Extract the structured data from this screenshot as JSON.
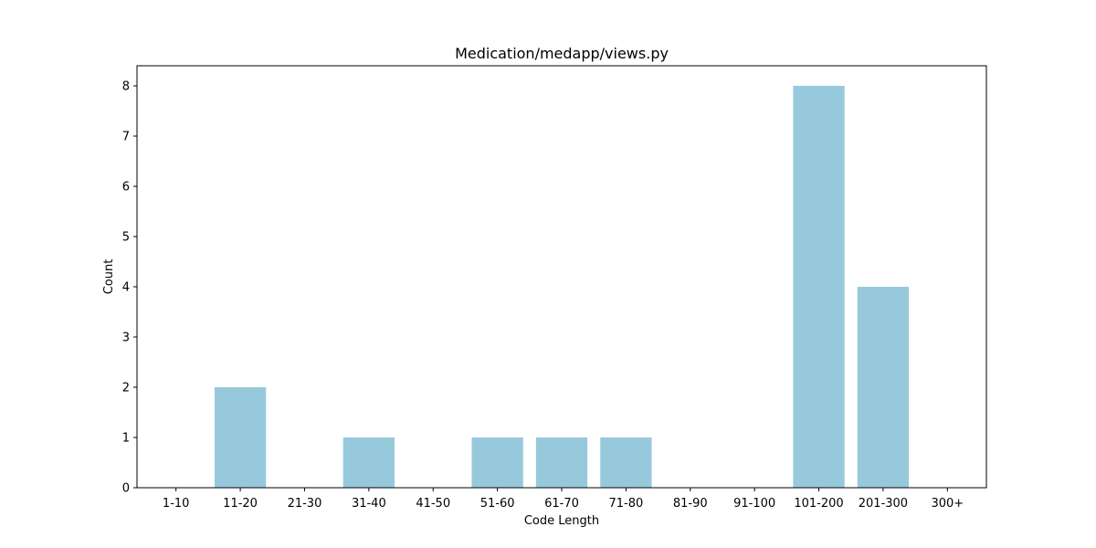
{
  "chart_data": {
    "type": "bar",
    "title": "Medication/medapp/views.py",
    "xlabel": "Code Length",
    "ylabel": "Count",
    "categories": [
      "1-10",
      "11-20",
      "21-30",
      "31-40",
      "41-50",
      "51-60",
      "61-70",
      "71-80",
      "81-90",
      "91-100",
      "101-200",
      "201-300",
      "300+"
    ],
    "values": [
      0,
      2,
      0,
      1,
      0,
      1,
      1,
      1,
      0,
      0,
      8,
      4,
      0
    ],
    "ylim": [
      0,
      8.4
    ],
    "yticks": [
      0,
      1,
      2,
      3,
      4,
      5,
      6,
      7,
      8
    ],
    "grid": false,
    "legend": "none",
    "bar_color": "#96c9dc"
  }
}
